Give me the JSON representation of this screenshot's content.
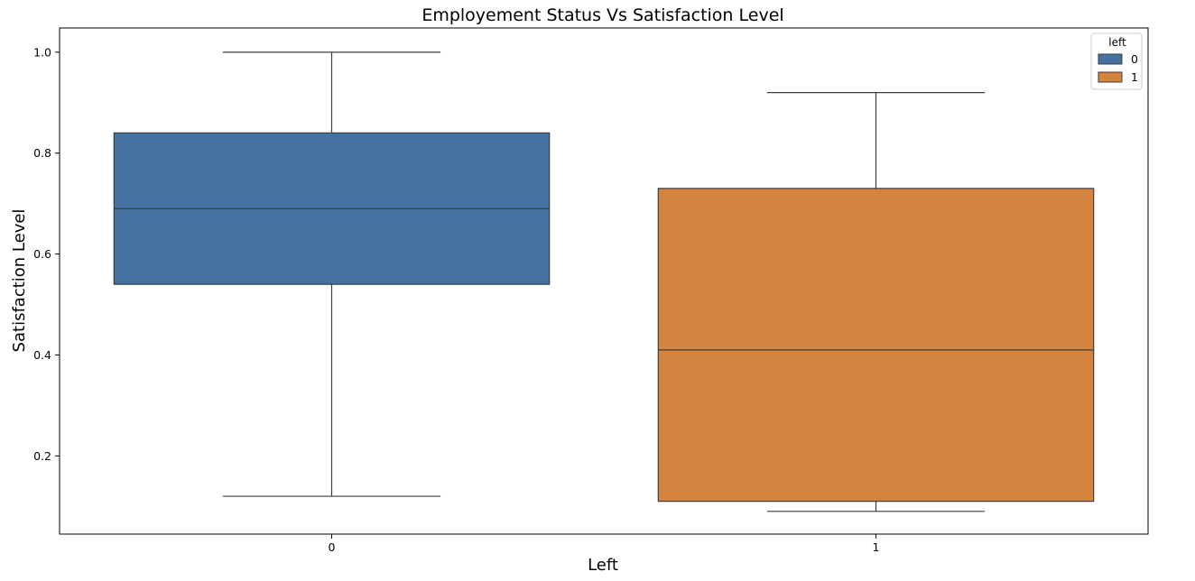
{
  "chart_data": {
    "type": "box",
    "title": "Employement Status Vs Satisfaction Level",
    "xlabel": "Left",
    "ylabel": "Satisfaction Level",
    "categories": [
      "0",
      "1"
    ],
    "ylim": [
      0.045,
      1.048
    ],
    "yticks": [
      0.2,
      0.4,
      0.6,
      0.8,
      1.0
    ],
    "ytick_labels": [
      "0.2",
      "0.4",
      "0.6",
      "0.8",
      "1.0"
    ],
    "grid": false,
    "legend": {
      "title": "left",
      "placement": "top-right",
      "entries": [
        "0",
        "1"
      ]
    },
    "series": [
      {
        "name": "0",
        "category": "0",
        "color": "#4472A0",
        "whisker_low": 0.12,
        "q1": 0.54,
        "median": 0.69,
        "q3": 0.84,
        "whisker_high": 1.0
      },
      {
        "name": "1",
        "category": "1",
        "color": "#D4843F",
        "whisker_low": 0.09,
        "q1": 0.11,
        "median": 0.41,
        "q3": 0.73,
        "whisker_high": 0.92
      }
    ]
  }
}
